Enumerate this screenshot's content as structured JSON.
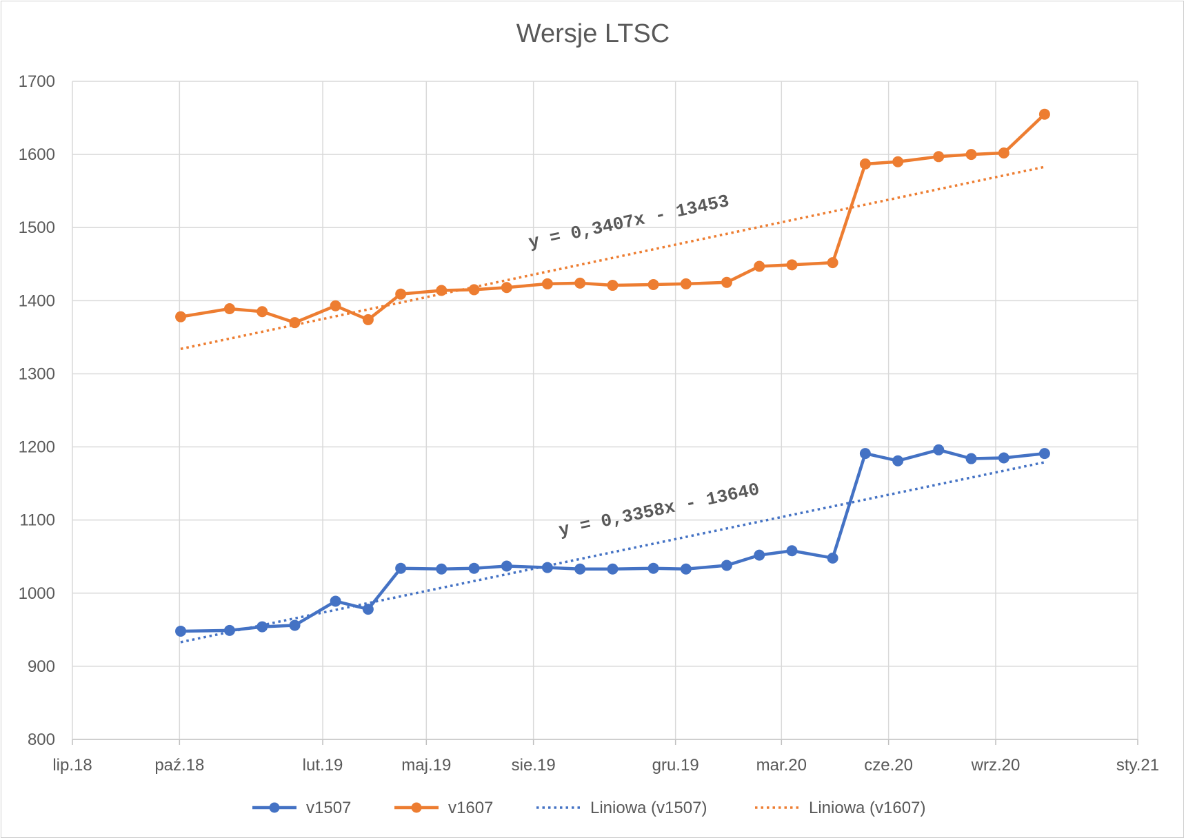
{
  "chart_data": {
    "type": "line",
    "title": "Wersje LTSC",
    "xlabel": "",
    "ylabel": "",
    "ylim": [
      800,
      1700
    ],
    "yticks": [
      800,
      900,
      1000,
      1100,
      1200,
      1300,
      1400,
      1500,
      1600,
      1700
    ],
    "xlim": [
      "2018-07-01",
      "2021-01-01"
    ],
    "xticks": [
      {
        "date": "2018-07-01",
        "label": "lip.18"
      },
      {
        "date": "2018-10-01",
        "label": "paź.18"
      },
      {
        "date": "2019-02-01",
        "label": "lut.19"
      },
      {
        "date": "2019-05-01",
        "label": "maj.19"
      },
      {
        "date": "2019-08-01",
        "label": "sie.19"
      },
      {
        "date": "2019-12-01",
        "label": "gru.19"
      },
      {
        "date": "2020-03-01",
        "label": "mar.20"
      },
      {
        "date": "2020-06-01",
        "label": "cze.20"
      },
      {
        "date": "2020-09-01",
        "label": "wrz.20"
      },
      {
        "date": "2021-01-01",
        "label": "sty.21"
      }
    ],
    "grid": true,
    "legend_position": "bottom",
    "x": [
      "2018-10-02",
      "2018-11-13",
      "2018-12-11",
      "2019-01-08",
      "2019-02-12",
      "2019-03-12",
      "2019-04-09",
      "2019-05-14",
      "2019-06-11",
      "2019-07-09",
      "2019-08-13",
      "2019-09-10",
      "2019-10-08",
      "2019-11-12",
      "2019-12-10",
      "2020-01-14",
      "2020-02-11",
      "2020-03-10",
      "2020-04-14",
      "2020-05-12",
      "2020-06-09",
      "2020-07-14",
      "2020-08-11",
      "2020-09-08",
      "2020-10-13"
    ],
    "series": [
      {
        "name": "v1507",
        "color": "#4472C4",
        "style": "line-markers",
        "values": [
          948,
          949,
          954,
          956,
          989,
          978,
          1034,
          1033,
          1034,
          1037,
          1035,
          1033,
          1033,
          1034,
          1033,
          1038,
          1052,
          1058,
          1048,
          1191,
          1181,
          1196,
          1184,
          1185,
          1191
        ]
      },
      {
        "name": "v1607",
        "color": "#ED7D31",
        "style": "line-markers",
        "values": [
          1378,
          1389,
          1385,
          1370,
          1393,
          1374,
          1409,
          1414,
          1415,
          1418,
          1423,
          1424,
          1421,
          1422,
          1423,
          1425,
          1447,
          1449,
          1452,
          1587,
          1590,
          1597,
          1600,
          1602,
          1655
        ]
      },
      {
        "name": "Liniowa (v1507)",
        "color": "#4472C4",
        "style": "dotted-trend",
        "trend_of": "v1507",
        "equation": "y = 0,3358x - 13640",
        "values_at_ends": [
          933,
          1179
        ]
      },
      {
        "name": "Liniowa (v1607)",
        "color": "#ED7D31",
        "style": "dotted-trend",
        "trend_of": "v1607",
        "equation": "y = 0,3407x - 13453",
        "values_at_ends": [
          1334,
          1583
        ]
      }
    ]
  }
}
